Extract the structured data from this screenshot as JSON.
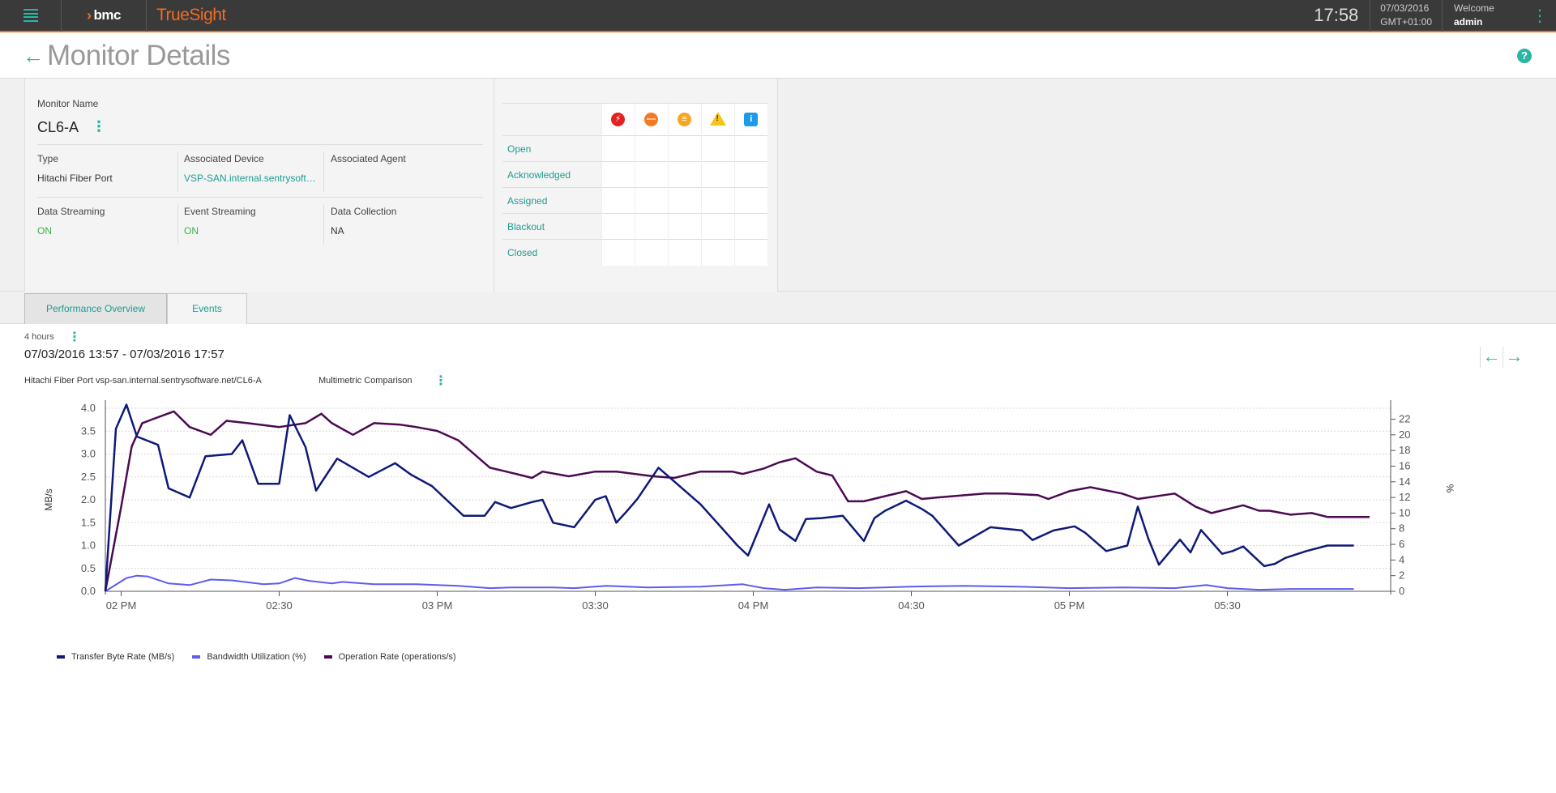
{
  "topbar": {
    "brand": "bmc",
    "product": "TrueSight",
    "time": "17:58",
    "date": "07/03/2016",
    "timezone": "GMT+01:00",
    "welcome": "Welcome",
    "user": "admin"
  },
  "page": {
    "title": "Monitor Details",
    "help": "?"
  },
  "monitor": {
    "name_label": "Monitor Name",
    "name": "CL6-A",
    "type_label": "Type",
    "type": "Hitachi Fiber Port",
    "device_label": "Associated Device",
    "device": "VSP-SAN.internal.sentrysoftware.net",
    "agent_label": "Associated Agent",
    "agent": "",
    "data_streaming_label": "Data Streaming",
    "data_streaming": "ON",
    "event_streaming_label": "Event Streaming",
    "event_streaming": "ON",
    "data_collection_label": "Data Collection",
    "data_collection": "NA"
  },
  "events": {
    "severities": [
      {
        "name": "critical-icon",
        "color": "#e62020"
      },
      {
        "name": "major-icon",
        "color": "#f47a20"
      },
      {
        "name": "minor-icon",
        "color": "#f5a623"
      },
      {
        "name": "warning-icon",
        "color": "#f5c518"
      },
      {
        "name": "info-icon",
        "color": "#1e9be8"
      }
    ],
    "rows": [
      "Open",
      "Acknowledged",
      "Assigned",
      "Blackout",
      "Closed"
    ]
  },
  "tabs": [
    {
      "label": "Performance Overview",
      "active": true
    },
    {
      "label": "Events",
      "active": false
    }
  ],
  "chart_header": {
    "time_range": "4 hours",
    "date_range": "07/03/2016 13:57 - 07/03/2016 17:57",
    "subtitle": "Hitachi Fiber Port vsp-san.internal.sentrysoftware.net/CL6-A",
    "comparison": "Multimetric Comparison"
  },
  "chart_data": {
    "type": "line",
    "xlabel": "",
    "ylabel": "MB/s",
    "y2label": "%",
    "x_start": "13:57",
    "x_end": "17:57",
    "x_ticks": [
      "02 PM",
      "02:30",
      "03 PM",
      "03:30",
      "04 PM",
      "04:30",
      "05 PM",
      "05:30"
    ],
    "ylim": [
      0,
      4.0
    ],
    "y_ticks": [
      "0.0",
      "0.5",
      "1.0",
      "1.5",
      "2.0",
      "2.5",
      "3.0",
      "3.5",
      "4.0"
    ],
    "y2lim": [
      0,
      23.4
    ],
    "y2_ticks": [
      "0",
      "2",
      "4",
      "6",
      "8",
      "10",
      "12",
      "14",
      "16",
      "18",
      "20",
      "22"
    ],
    "grid": true,
    "legend_position": "bottom-left",
    "series": [
      {
        "name": "Transfer Byte Rate (MB/s)",
        "axis": "left",
        "color": "#0e1a78",
        "x": [
          "13:57",
          "13:59",
          "14:01",
          "14:03",
          "14:07",
          "14:09",
          "14:13",
          "14:16",
          "14:21",
          "14:23",
          "14:26",
          "14:30",
          "14:32",
          "14:35",
          "14:37",
          "14:41",
          "14:47",
          "14:52",
          "14:55",
          "14:59",
          "15:05",
          "15:09",
          "15:11",
          "15:14",
          "15:18",
          "15:20",
          "15:22",
          "15:26",
          "15:30",
          "15:32",
          "15:34",
          "15:36",
          "15:38",
          "15:42",
          "15:50",
          "15:57",
          "15:59",
          "16:03",
          "16:05",
          "16:08",
          "16:10",
          "16:13",
          "16:17",
          "16:21",
          "16:23",
          "16:25",
          "16:29",
          "16:32",
          "16:34",
          "16:39",
          "16:45",
          "16:51",
          "16:53",
          "16:57",
          "17:01",
          "17:03",
          "17:07",
          "17:11",
          "17:13",
          "17:15",
          "17:17",
          "17:21",
          "17:23",
          "17:25",
          "17:29",
          "17:31",
          "17:33",
          "17:37",
          "17:39",
          "17:41",
          "17:45",
          "17:49",
          "17:54"
        ],
        "y": [
          0.0,
          3.55,
          4.08,
          3.38,
          3.2,
          2.25,
          2.05,
          2.95,
          3.0,
          3.3,
          2.35,
          2.35,
          3.85,
          3.15,
          2.2,
          2.9,
          2.5,
          2.8,
          2.55,
          2.3,
          1.65,
          1.65,
          1.95,
          1.82,
          1.95,
          2.0,
          1.5,
          1.4,
          2.0,
          2.08,
          1.5,
          1.75,
          2.02,
          2.7,
          1.9,
          1.0,
          0.78,
          1.9,
          1.35,
          1.1,
          1.58,
          1.6,
          1.65,
          1.1,
          1.6,
          1.76,
          1.98,
          1.8,
          1.65,
          1.0,
          1.4,
          1.33,
          1.12,
          1.33,
          1.42,
          1.28,
          0.88,
          1.0,
          1.85,
          1.15,
          0.58,
          1.13,
          0.85,
          1.34,
          0.82,
          0.88,
          0.98,
          0.55,
          0.6,
          0.73,
          0.88,
          1.0,
          1.0
        ]
      },
      {
        "name": "Bandwidth Utilization (%)",
        "axis": "right",
        "color": "#5c5cf0",
        "x": [
          "13:57",
          "14:01",
          "14:03",
          "14:05",
          "14:09",
          "14:13",
          "14:17",
          "14:21",
          "14:27",
          "14:30",
          "14:33",
          "14:36",
          "14:40",
          "14:42",
          "14:48",
          "14:56",
          "15:04",
          "15:10",
          "15:14",
          "15:22",
          "15:26",
          "15:32",
          "15:40",
          "15:50",
          "15:58",
          "16:02",
          "16:06",
          "16:12",
          "16:20",
          "16:30",
          "16:40",
          "16:50",
          "17:00",
          "17:10",
          "17:20",
          "17:26",
          "17:30",
          "17:36",
          "17:42",
          "17:54"
        ],
        "y": [
          0.0,
          1.7,
          2.0,
          1.9,
          1.0,
          0.8,
          1.5,
          1.4,
          0.9,
          1.0,
          1.7,
          1.3,
          1.0,
          1.2,
          0.9,
          0.9,
          0.7,
          0.4,
          0.5,
          0.5,
          0.4,
          0.7,
          0.5,
          0.6,
          0.9,
          0.4,
          0.2,
          0.5,
          0.4,
          0.6,
          0.7,
          0.6,
          0.4,
          0.5,
          0.4,
          0.8,
          0.4,
          0.2,
          0.3,
          0.3
        ]
      },
      {
        "name": "Operation Rate (operations/s)",
        "axis": "right",
        "color": "#4b0a52",
        "x": [
          "13:57",
          "14:00",
          "14:02",
          "14:04",
          "14:06",
          "14:10",
          "14:13",
          "14:17",
          "14:20",
          "14:24",
          "14:30",
          "14:35",
          "14:38",
          "14:40",
          "14:44",
          "14:48",
          "14:53",
          "14:56",
          "15:00",
          "15:04",
          "15:10",
          "15:15",
          "15:18",
          "15:20",
          "15:25",
          "15:30",
          "15:34",
          "15:41",
          "15:45",
          "15:50",
          "15:56",
          "15:58",
          "16:02",
          "16:05",
          "16:08",
          "16:12",
          "16:15",
          "16:18",
          "16:21",
          "16:24",
          "16:29",
          "16:32",
          "16:35",
          "16:44",
          "16:48",
          "16:54",
          "16:56",
          "17:00",
          "17:04",
          "17:10",
          "17:13",
          "17:20",
          "17:24",
          "17:27",
          "17:33",
          "17:36",
          "17:38",
          "17:42",
          "17:46",
          "17:49",
          "17:57"
        ],
        "y": [
          0.0,
          10.8,
          18.5,
          21.5,
          22.0,
          23.0,
          21.0,
          20.0,
          21.8,
          21.5,
          21.0,
          21.5,
          22.7,
          21.5,
          20.0,
          21.5,
          21.3,
          21.0,
          20.5,
          19.3,
          15.8,
          15.0,
          14.5,
          15.3,
          14.7,
          15.3,
          15.3,
          14.7,
          14.5,
          15.3,
          15.3,
          15.0,
          15.7,
          16.5,
          17.0,
          15.3,
          14.8,
          11.5,
          11.5,
          12.0,
          12.8,
          11.8,
          12.0,
          12.5,
          12.5,
          12.3,
          11.8,
          12.8,
          13.3,
          12.5,
          11.8,
          12.5,
          10.8,
          10.0,
          11.0,
          10.3,
          10.3,
          9.8,
          10.0,
          9.5,
          9.5
        ]
      }
    ]
  }
}
